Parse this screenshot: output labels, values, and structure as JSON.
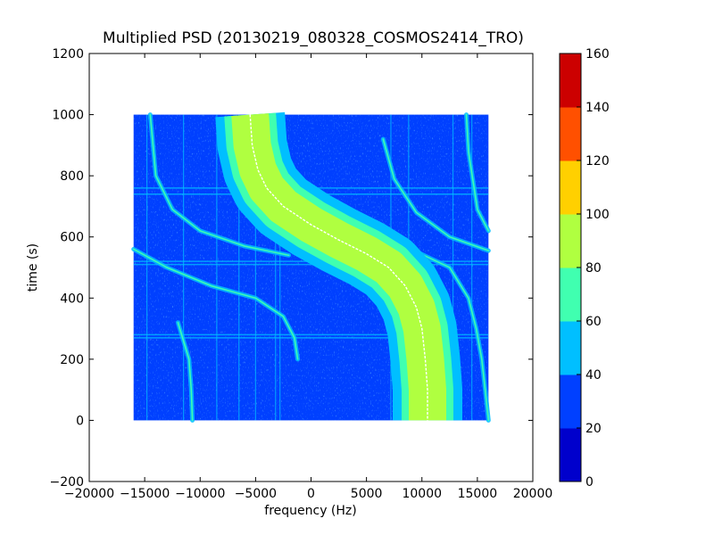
{
  "chart_data": {
    "type": "heatmap",
    "title": "Multiplied PSD (20130219_080328_COSMOS2414_TRO)",
    "xlabel": "frequency (Hz)",
    "ylabel": "time (s)",
    "xlim": [
      -20000,
      20000
    ],
    "ylim": [
      -200,
      1200
    ],
    "x_ticks": [
      -20000,
      -15000,
      -10000,
      -5000,
      0,
      5000,
      10000,
      15000,
      20000
    ],
    "x_tick_labels": [
      "−20000",
      "−15000",
      "−10000",
      "−5000",
      "0",
      "5000",
      "10000",
      "15000",
      "20000"
    ],
    "y_ticks": [
      -200,
      0,
      200,
      400,
      600,
      800,
      1000,
      1200
    ],
    "y_tick_labels": [
      "−200",
      "0",
      "200",
      "400",
      "600",
      "800",
      "1000",
      "1200"
    ],
    "data_extent": {
      "x": [
        -16000,
        16000
      ],
      "y": [
        0,
        1000
      ]
    },
    "background_level": 30,
    "colorbar": {
      "levels": [
        0,
        20,
        40,
        60,
        80,
        100,
        120,
        140,
        160
      ],
      "tick_labels": [
        "0",
        "20",
        "40",
        "60",
        "80",
        "100",
        "120",
        "140",
        "160"
      ],
      "colors": [
        "#0000cc",
        "#0040ff",
        "#00bfff",
        "#40ffb0",
        "#b0ff40",
        "#ffd000",
        "#ff5000",
        "#cc0000"
      ]
    },
    "main_trace": {
      "description_level": "80-100 band with 60-80 halo",
      "points_freq_time": [
        [
          -5500,
          1000
        ],
        [
          -5300,
          900
        ],
        [
          -4800,
          820
        ],
        [
          -4000,
          760
        ],
        [
          -2500,
          700
        ],
        [
          0,
          640
        ],
        [
          2500,
          590
        ],
        [
          5000,
          545
        ],
        [
          7000,
          500
        ],
        [
          8500,
          440
        ],
        [
          9500,
          370
        ],
        [
          10000,
          300
        ],
        [
          10300,
          200
        ],
        [
          10500,
          100
        ],
        [
          10500,
          0
        ]
      ],
      "center_line_level": "white (peak)"
    },
    "secondary_traces": [
      {
        "points_freq_time": [
          [
            -14500,
            1000
          ],
          [
            -14000,
            800
          ],
          [
            -12500,
            690
          ],
          [
            -10000,
            620
          ],
          [
            -6000,
            570
          ],
          [
            -2000,
            540
          ]
        ]
      },
      {
        "points_freq_time": [
          [
            -16000,
            560
          ],
          [
            -13000,
            500
          ],
          [
            -9000,
            440
          ],
          [
            -5000,
            400
          ],
          [
            -2500,
            340
          ],
          [
            -1500,
            270
          ],
          [
            -1200,
            200
          ]
        ]
      },
      {
        "points_freq_time": [
          [
            6500,
            920
          ],
          [
            7500,
            790
          ],
          [
            9500,
            680
          ],
          [
            12500,
            600
          ],
          [
            16000,
            555
          ]
        ]
      },
      {
        "points_freq_time": [
          [
            9000,
            560
          ],
          [
            12500,
            500
          ],
          [
            14200,
            400
          ],
          [
            14900,
            300
          ],
          [
            15400,
            200
          ],
          [
            15700,
            100
          ],
          [
            16000,
            0
          ]
        ]
      },
      {
        "points_freq_time": [
          [
            14000,
            1000
          ],
          [
            14200,
            880
          ],
          [
            15000,
            690
          ],
          [
            16000,
            620
          ]
        ]
      },
      {
        "points_freq_time": [
          [
            -12000,
            320
          ],
          [
            -11000,
            200
          ],
          [
            -10800,
            100
          ],
          [
            -10700,
            0
          ]
        ]
      }
    ],
    "vertical_lines_freq": [
      -14800,
      -11500,
      -8500,
      -6500,
      -5000,
      -3200,
      -2800,
      7200,
      8800,
      12800,
      14500
    ],
    "horizontal_bands_time": [
      270,
      280,
      510,
      520,
      740,
      760
    ]
  }
}
